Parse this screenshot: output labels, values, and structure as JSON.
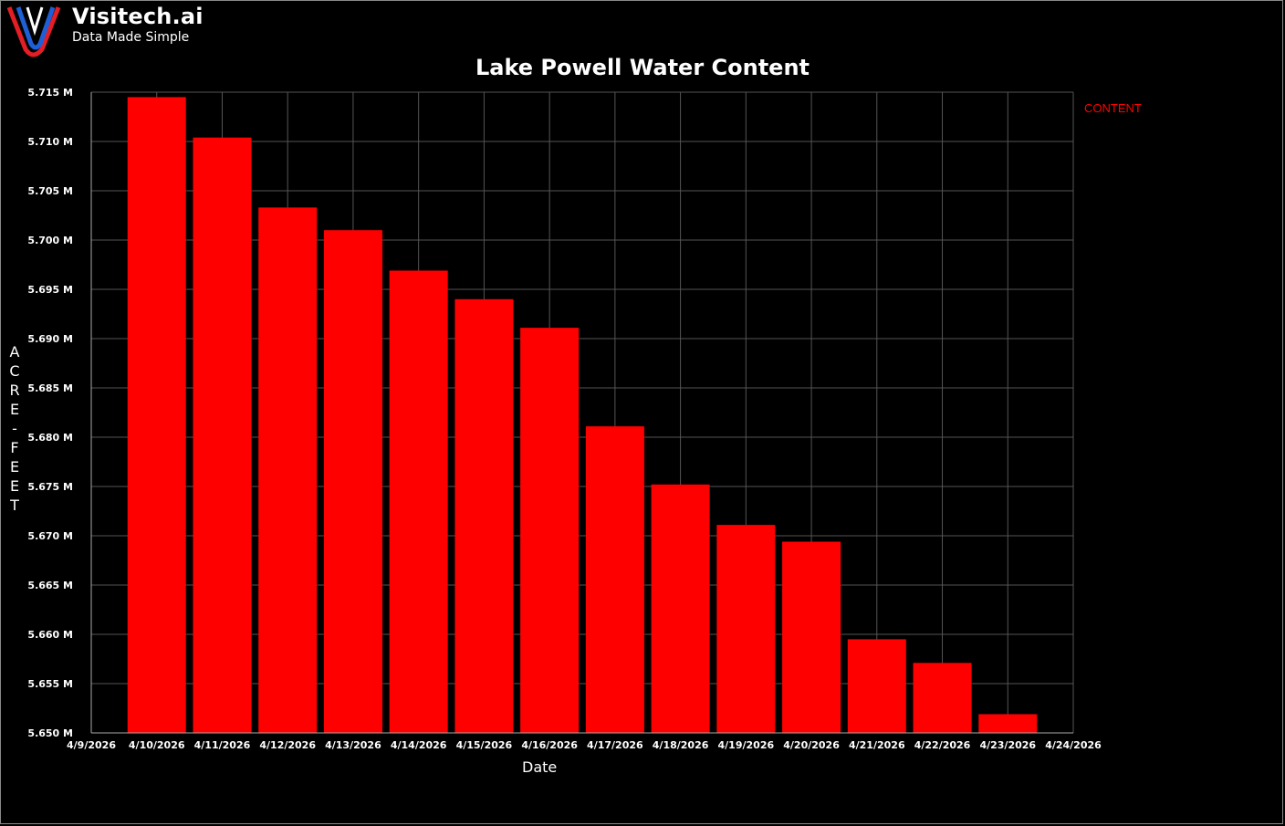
{
  "brand": {
    "name": "Visitech.ai",
    "tagline": "Data Made Simple",
    "colors": {
      "red": "#e31e24",
      "blue": "#1f5fd6"
    }
  },
  "chart_data": {
    "type": "bar",
    "title": "Lake Powell Water Content",
    "xlabel": "Date",
    "ylabel": "ACRE-FEET",
    "legend": [
      {
        "label": "CONTENT",
        "color": "#ff0000"
      }
    ],
    "legend_position": "right",
    "grid": true,
    "x_ticks": [
      "4/9/2026",
      "4/10/2026",
      "4/11/2026",
      "4/12/2026",
      "4/13/2026",
      "4/14/2026",
      "4/15/2026",
      "4/16/2026",
      "4/17/2026",
      "4/18/2026",
      "4/19/2026",
      "4/20/2026",
      "4/21/2026",
      "4/22/2026",
      "4/23/2026",
      "4/24/2026"
    ],
    "y_ticks": [
      "5.715 M",
      "5.710 M",
      "5.705 M",
      "5.700 M",
      "5.695 M",
      "5.690 M",
      "5.685 M",
      "5.680 M",
      "5.675 M",
      "5.670 M",
      "5.665 M",
      "5.660 M",
      "5.655 M",
      "5.650 M"
    ],
    "ylim": [
      5650000,
      5715000
    ],
    "categories": [
      "4/10/2026",
      "4/11/2026",
      "4/12/2026",
      "4/13/2026",
      "4/14/2026",
      "4/15/2026",
      "4/16/2026",
      "4/17/2026",
      "4/18/2026",
      "4/19/2026",
      "4/20/2026",
      "4/21/2026",
      "4/22/2026",
      "4/23/2026"
    ],
    "series": [
      {
        "name": "CONTENT",
        "color": "#ff0000",
        "values": [
          5714500,
          5710400,
          5703300,
          5701000,
          5696900,
          5694000,
          5691100,
          5681100,
          5675200,
          5671100,
          5669400,
          5659500,
          5657100,
          5651900
        ]
      }
    ]
  }
}
